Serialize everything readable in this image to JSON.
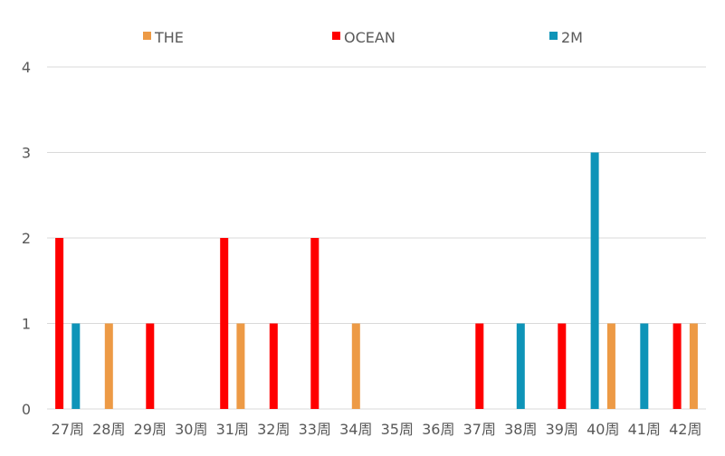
{
  "chart_data": {
    "type": "bar",
    "title": "",
    "xlabel": "",
    "ylabel": "",
    "ylim": [
      0,
      4
    ],
    "yticks": [
      "0",
      "1",
      "2",
      "3",
      "4"
    ],
    "grid": true,
    "legend_position": "top",
    "categories": [
      "27周",
      "28周",
      "29周",
      "30周",
      "31周",
      "32周",
      "33周",
      "34周",
      "35周",
      "36周",
      "37周",
      "38周",
      "39周",
      "40周",
      "41周",
      "42周"
    ],
    "series": [
      {
        "name": "THE",
        "color": "#ED9A45",
        "values": [
          0,
          1,
          0,
          0,
          1,
          0,
          0,
          1,
          0,
          0,
          0,
          0,
          0,
          1,
          0,
          1
        ]
      },
      {
        "name": "OCEAN",
        "color": "#FF0000",
        "values": [
          2,
          0,
          1,
          0,
          2,
          1,
          2,
          0,
          0,
          0,
          1,
          0,
          1,
          0,
          0,
          1
        ]
      },
      {
        "name": "2M",
        "color": "#0E94B8",
        "values": [
          1,
          0,
          0,
          0,
          0,
          0,
          0,
          0,
          0,
          0,
          0,
          1,
          0,
          3,
          1,
          0
        ]
      }
    ]
  }
}
